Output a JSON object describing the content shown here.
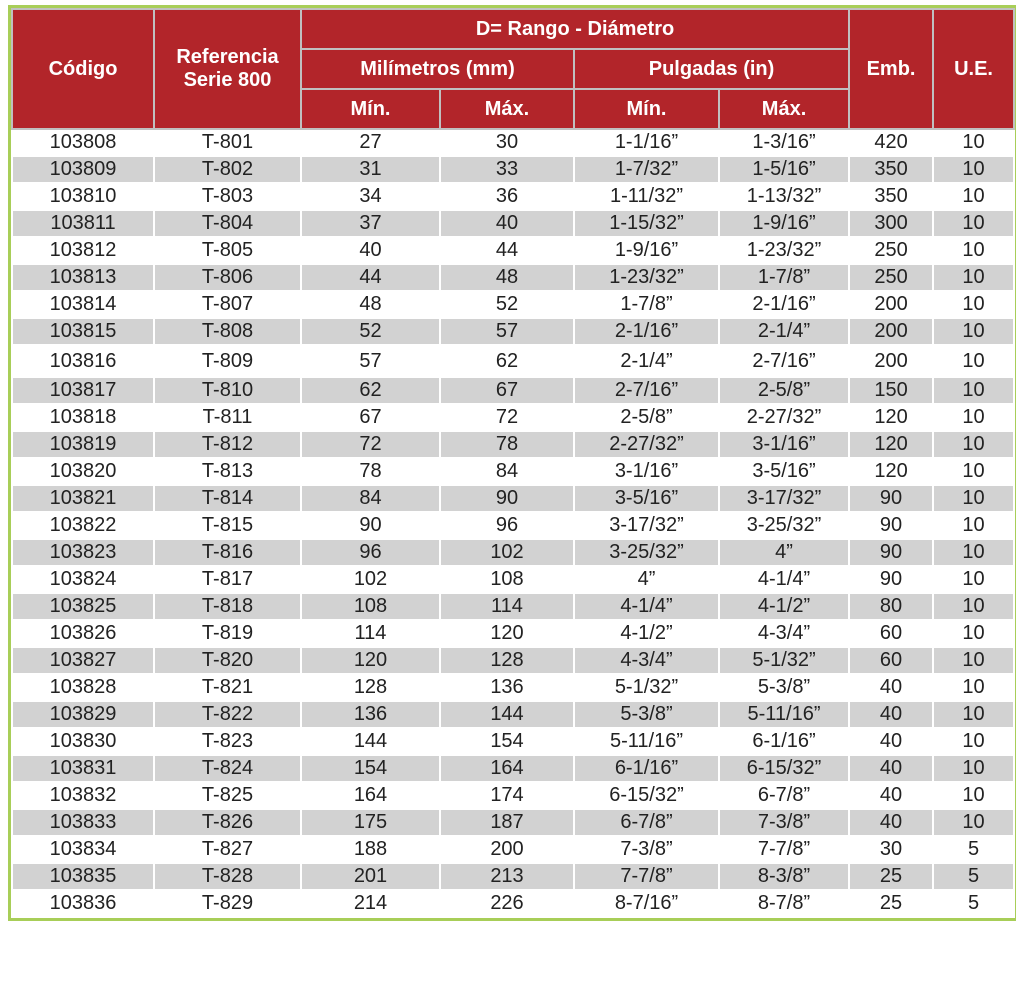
{
  "colors": {
    "header_bg": "#b2252a",
    "border_green": "#a8ce58",
    "row_alt": "#d2d2d2",
    "header_divider": "#c0c0c0",
    "text_dark": "#222222"
  },
  "table": {
    "header": {
      "codigo": "Código",
      "referencia": "Referencia Serie 800",
      "rango": "D= Rango - Diámetro",
      "mm": "Milímetros (mm)",
      "in": "Pulgadas (in)",
      "min_mm": "Mín.",
      "max_mm": "Máx.",
      "min_in": "Mín.",
      "max_in": "Máx.",
      "emb": "Emb.",
      "ue": "U.E."
    },
    "rows": [
      [
        "103808",
        "T-801",
        "27",
        "30",
        "1-1/16”",
        "1-3/16”",
        "420",
        "10"
      ],
      [
        "103809",
        "T-802",
        "31",
        "33",
        "1-7/32”",
        "1-5/16”",
        "350",
        "10"
      ],
      [
        "103810",
        "T-803",
        "34",
        "36",
        "1-11/32”",
        "1-13/32”",
        "350",
        "10"
      ],
      [
        "103811",
        "T-804",
        "37",
        "40",
        "1-15/32”",
        "1-9/16”",
        "300",
        "10"
      ],
      [
        "103812",
        "T-805",
        "40",
        "44",
        "1-9/16”",
        "1-23/32”",
        "250",
        "10"
      ],
      [
        "103813",
        "T-806",
        "44",
        "48",
        "1-23/32”",
        "1-7/8”",
        "250",
        "10"
      ],
      [
        "103814",
        "T-807",
        "48",
        "52",
        "1-7/8”",
        "2-1/16”",
        "200",
        "10"
      ],
      [
        "103815",
        "T-808",
        "52",
        "57",
        "2-1/16”",
        "2-1/4”",
        "200",
        "10"
      ],
      [
        "103816",
        "T-809",
        "57",
        "62",
        "2-1/4”",
        "2-7/16”",
        "200",
        "10"
      ],
      [
        "103817",
        "T-810",
        "62",
        "67",
        "2-7/16”",
        "2-5/8”",
        "150",
        "10"
      ],
      [
        "103818",
        "T-811",
        "67",
        "72",
        "2-5/8”",
        "2-27/32”",
        "120",
        "10"
      ],
      [
        "103819",
        "T-812",
        "72",
        "78",
        "2-27/32”",
        "3-1/16”",
        "120",
        "10"
      ],
      [
        "103820",
        "T-813",
        "78",
        "84",
        "3-1/16”",
        "3-5/16”",
        "120",
        "10"
      ],
      [
        "103821",
        "T-814",
        "84",
        "90",
        "3-5/16”",
        "3-17/32”",
        "90",
        "10"
      ],
      [
        "103822",
        "T-815",
        "90",
        "96",
        "3-17/32”",
        "3-25/32”",
        "90",
        "10"
      ],
      [
        "103823",
        "T-816",
        "96",
        "102",
        "3-25/32”",
        "4”",
        "90",
        "10"
      ],
      [
        "103824",
        "T-817",
        "102",
        "108",
        "4”",
        "4-1/4”",
        "90",
        "10"
      ],
      [
        "103825",
        "T-818",
        "108",
        "114",
        "4-1/4”",
        "4-1/2”",
        "80",
        "10"
      ],
      [
        "103826",
        "T-819",
        "114",
        "120",
        "4-1/2”",
        "4-3/4”",
        "60",
        "10"
      ],
      [
        "103827",
        "T-820",
        "120",
        "128",
        "4-3/4”",
        "5-1/32”",
        "60",
        "10"
      ],
      [
        "103828",
        "T-821",
        "128",
        "136",
        "5-1/32”",
        "5-3/8”",
        "40",
        "10"
      ],
      [
        "103829",
        "T-822",
        "136",
        "144",
        "5-3/8”",
        "5-11/16”",
        "40",
        "10"
      ],
      [
        "103830",
        "T-823",
        "144",
        "154",
        "5-11/16”",
        "6-1/16”",
        "40",
        "10"
      ],
      [
        "103831",
        "T-824",
        "154",
        "164",
        "6-1/16”",
        "6-15/32”",
        "40",
        "10"
      ],
      [
        "103832",
        "T-825",
        "164",
        "174",
        "6-15/32”",
        "6-7/8”",
        "40",
        "10"
      ],
      [
        "103833",
        "T-826",
        "175",
        "187",
        "6-7/8”",
        "7-3/8”",
        "40",
        "10"
      ],
      [
        "103834",
        "T-827",
        "188",
        "200",
        "7-3/8”",
        "7-7/8”",
        "30",
        "5"
      ],
      [
        "103835",
        "T-828",
        "201",
        "213",
        "7-7/8”",
        "8-3/8”",
        "25",
        "5"
      ],
      [
        "103836",
        "T-829",
        "214",
        "226",
        "8-7/16”",
        "8-7/8”",
        "25",
        "5"
      ]
    ]
  }
}
